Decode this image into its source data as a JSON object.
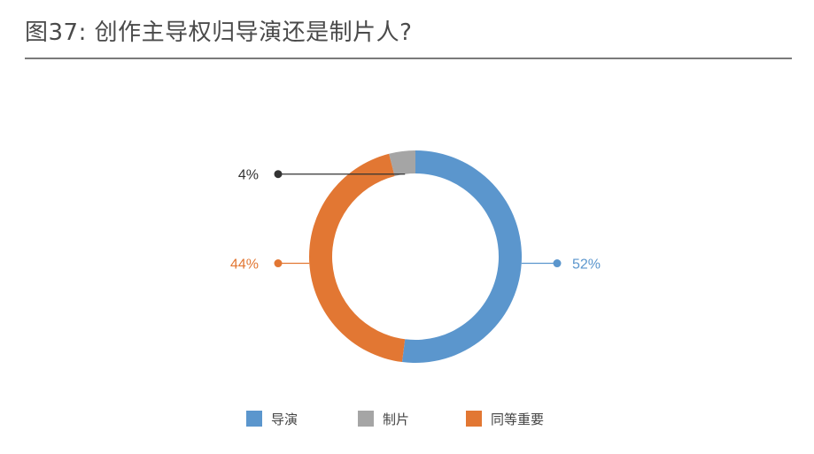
{
  "header": {
    "title": "图37: 创作主导权归导演还是制片人?"
  },
  "chart_data": {
    "type": "pie",
    "style": "donut",
    "title": "图37: 创作主导权归导演还是制片人?",
    "categories": [
      "导演",
      "制片",
      "同等重要"
    ],
    "values": [
      52,
      4,
      44
    ],
    "labels": [
      "52%",
      "4%",
      "44%"
    ],
    "unit": "%",
    "colors": [
      "#5b96cd",
      "#a5a5a5",
      "#e27733"
    ],
    "label_colors": [
      "#5b96cd",
      "#333333",
      "#e27733"
    ],
    "legend_position": "bottom"
  }
}
